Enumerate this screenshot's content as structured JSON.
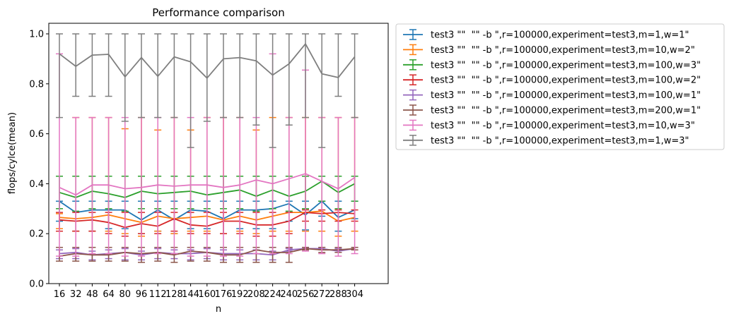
{
  "chart_data": {
    "type": "line",
    "title": "Performance comparison",
    "xlabel": "n",
    "ylabel": "flops/cylce(mean)",
    "x": [
      16,
      32,
      48,
      64,
      80,
      96,
      112,
      128,
      144,
      160,
      176,
      192,
      208,
      224,
      240,
      256,
      272,
      288,
      304
    ],
    "xticks": [
      "16",
      "32",
      "48",
      "64",
      "80",
      "96",
      "112",
      "128",
      "144",
      "160",
      "176",
      "192",
      "208",
      "224",
      "240",
      "256",
      "272",
      "288",
      "304"
    ],
    "ylim": [
      0.0,
      1.0
    ],
    "yticks": [
      "0.0",
      "0.2",
      "0.4",
      "0.6",
      "0.8",
      "1.0"
    ],
    "legend_position": "outside-upper-right",
    "grid": false,
    "error_bars": true,
    "series": [
      {
        "name": "test3 \"\"  \"\" -b \",r=100000,experiment=test3,m=1,w=1\"",
        "color": "#1f77b4",
        "values": [
          0.33,
          0.285,
          0.295,
          0.295,
          0.295,
          0.255,
          0.295,
          0.255,
          0.295,
          0.29,
          0.26,
          0.295,
          0.295,
          0.3,
          0.32,
          0.275,
          0.33,
          0.265,
          0.295
        ],
        "err_low": [
          0.25,
          0.21,
          0.21,
          0.22,
          0.22,
          0.2,
          0.21,
          0.2,
          0.22,
          0.22,
          0.2,
          0.22,
          0.22,
          0.22,
          0.25,
          0.215,
          0.27,
          0.21,
          0.26
        ],
        "err_high": [
          0.33,
          0.33,
          0.33,
          0.33,
          0.33,
          0.33,
          0.33,
          0.33,
          0.33,
          0.33,
          0.33,
          0.33,
          0.33,
          0.33,
          0.33,
          0.33,
          0.33,
          0.33,
          0.33
        ]
      },
      {
        "name": "test3 \"\"  \"\" -b \",r=100000,experiment=test3,m=10,w=2\"",
        "color": "#ff7f0e",
        "values": [
          0.265,
          0.26,
          0.265,
          0.275,
          0.26,
          0.245,
          0.27,
          0.26,
          0.265,
          0.27,
          0.255,
          0.27,
          0.255,
          0.27,
          0.285,
          0.285,
          0.29,
          0.25,
          0.265
        ],
        "err_low": [
          0.22,
          0.21,
          0.21,
          0.21,
          0.2,
          0.19,
          0.21,
          0.2,
          0.21,
          0.21,
          0.2,
          0.21,
          0.2,
          0.21,
          0.21,
          0.21,
          0.21,
          0.19,
          0.21
        ],
        "err_high": [
          0.28,
          0.665,
          0.665,
          0.665,
          0.62,
          0.665,
          0.615,
          0.665,
          0.615,
          0.665,
          0.665,
          0.665,
          0.615,
          0.665,
          0.665,
          0.665,
          0.665,
          0.665,
          0.665
        ]
      },
      {
        "name": "test3 \"\"  \"\" -b \",r=100000,experiment=test3,m=100,w=3\"",
        "color": "#2ca02c",
        "values": [
          0.365,
          0.345,
          0.37,
          0.36,
          0.345,
          0.37,
          0.36,
          0.365,
          0.37,
          0.355,
          0.365,
          0.375,
          0.35,
          0.375,
          0.35,
          0.37,
          0.41,
          0.365,
          0.4
        ],
        "err_low": [
          0.3,
          0.29,
          0.3,
          0.3,
          0.29,
          0.3,
          0.3,
          0.3,
          0.3,
          0.3,
          0.3,
          0.3,
          0.29,
          0.3,
          0.29,
          0.3,
          0.33,
          0.3,
          0.33
        ],
        "err_high": [
          0.43,
          0.43,
          0.43,
          0.43,
          0.43,
          0.43,
          0.43,
          0.43,
          0.43,
          0.43,
          0.43,
          0.43,
          0.43,
          0.43,
          0.43,
          0.43,
          0.43,
          0.43,
          0.43
        ]
      },
      {
        "name": "test3 \"\"  \"\" -b \",r=100000,experiment=test3,m=100,w=2\"",
        "color": "#d62728",
        "values": [
          0.255,
          0.25,
          0.255,
          0.245,
          0.225,
          0.24,
          0.23,
          0.26,
          0.235,
          0.23,
          0.25,
          0.25,
          0.235,
          0.235,
          0.25,
          0.285,
          0.28,
          0.285,
          0.28
        ],
        "err_low": [
          0.21,
          0.21,
          0.21,
          0.2,
          0.19,
          0.2,
          0.2,
          0.21,
          0.2,
          0.2,
          0.2,
          0.2,
          0.19,
          0.19,
          0.2,
          0.25,
          0.25,
          0.25,
          0.25
        ],
        "err_high": [
          0.285,
          0.285,
          0.285,
          0.285,
          0.285,
          0.285,
          0.285,
          0.285,
          0.285,
          0.285,
          0.285,
          0.285,
          0.285,
          0.285,
          0.285,
          0.295,
          0.295,
          0.295,
          0.295
        ]
      },
      {
        "name": "test3 \"\"  \"\" -b \",r=100000,experiment=test3,m=100,w=1\"",
        "color": "#9467bd",
        "values": [
          0.12,
          0.125,
          0.115,
          0.12,
          0.125,
          0.115,
          0.125,
          0.12,
          0.12,
          0.125,
          0.12,
          0.12,
          0.12,
          0.115,
          0.135,
          0.14,
          0.14,
          0.13,
          0.14
        ],
        "err_low": [
          0.1,
          0.1,
          0.095,
          0.1,
          0.095,
          0.095,
          0.1,
          0.1,
          0.095,
          0.1,
          0.095,
          0.095,
          0.095,
          0.095,
          0.13,
          0.135,
          0.135,
          0.125,
          0.135
        ],
        "err_high": [
          0.135,
          0.14,
          0.13,
          0.135,
          0.14,
          0.13,
          0.14,
          0.135,
          0.135,
          0.14,
          0.135,
          0.135,
          0.135,
          0.13,
          0.14,
          0.145,
          0.145,
          0.14,
          0.145
        ]
      },
      {
        "name": "test3 \"\"  \"\" -b \",r=100000,experiment=test3,m=200,w=1\"",
        "color": "#8c564b",
        "values": [
          0.11,
          0.12,
          0.115,
          0.115,
          0.125,
          0.12,
          0.125,
          0.115,
          0.13,
          0.125,
          0.115,
          0.115,
          0.135,
          0.125,
          0.125,
          0.14,
          0.135,
          0.135,
          0.14
        ],
        "err_low": [
          0.09,
          0.09,
          0.09,
          0.09,
          0.09,
          0.085,
          0.09,
          0.085,
          0.09,
          0.09,
          0.085,
          0.085,
          0.085,
          0.085,
          0.085,
          0.135,
          0.125,
          0.125,
          0.135
        ],
        "err_high": [
          0.145,
          0.145,
          0.145,
          0.145,
          0.145,
          0.145,
          0.145,
          0.145,
          0.145,
          0.145,
          0.145,
          0.145,
          0.145,
          0.145,
          0.145,
          0.145,
          0.145,
          0.145,
          0.145
        ]
      },
      {
        "name": "test3 \"\"  \"\" -b \",r=100000,experiment=test3,m=10,w=3\"",
        "color": "#e377c2",
        "values": [
          0.385,
          0.355,
          0.395,
          0.395,
          0.38,
          0.385,
          0.395,
          0.39,
          0.395,
          0.395,
          0.385,
          0.395,
          0.415,
          0.4,
          0.42,
          0.44,
          0.41,
          0.38,
          0.425
        ],
        "err_low": [
          0.11,
          0.11,
          0.12,
          0.12,
          0.11,
          0.11,
          0.12,
          0.12,
          0.11,
          0.11,
          0.11,
          0.11,
          0.12,
          0.12,
          0.12,
          0.13,
          0.12,
          0.11,
          0.12
        ],
        "err_high": [
          0.92,
          0.665,
          0.665,
          0.665,
          0.665,
          0.665,
          0.665,
          0.665,
          0.665,
          0.665,
          0.665,
          0.665,
          0.665,
          0.92,
          0.665,
          0.855,
          0.665,
          0.665,
          0.665
        ]
      },
      {
        "name": "test3 \"\"  \"\" -b \",r=100000,experiment=test3,m=1,w=3\"",
        "color": "#7f7f7f",
        "values": [
          0.92,
          0.87,
          0.915,
          0.918,
          0.828,
          0.905,
          0.83,
          0.908,
          0.888,
          0.823,
          0.9,
          0.905,
          0.892,
          0.835,
          0.88,
          0.96,
          0.84,
          0.825,
          0.908
        ],
        "err_low": [
          0.665,
          0.75,
          0.75,
          0.75,
          0.65,
          0.665,
          0.665,
          0.665,
          0.545,
          0.65,
          0.665,
          0.665,
          0.635,
          0.545,
          0.635,
          0.665,
          0.545,
          0.75,
          0.665
        ],
        "err_high": [
          1.0,
          1.0,
          1.0,
          1.0,
          1.0,
          1.0,
          1.0,
          1.0,
          1.0,
          1.0,
          1.0,
          1.0,
          1.0,
          1.0,
          1.0,
          1.0,
          1.0,
          1.0,
          1.0
        ]
      }
    ]
  }
}
